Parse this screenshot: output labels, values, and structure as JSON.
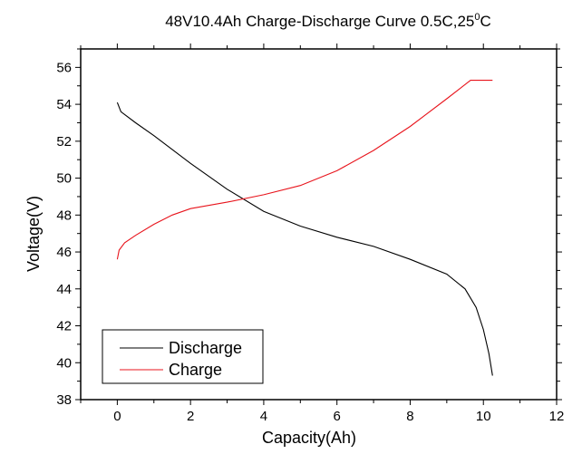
{
  "chart_data": {
    "type": "line",
    "title": "48V10.4Ah Charge-Discharge Curve  0.5C,25",
    "title_superscript": "0",
    "title_suffix": "C",
    "xlabel": "Capacity(Ah)",
    "ylabel": "Voltage(V)",
    "xlim": [
      -1,
      12
    ],
    "ylim": [
      38,
      57
    ],
    "xticks": [
      0,
      2,
      4,
      6,
      8,
      10,
      12
    ],
    "yticks": [
      38,
      40,
      42,
      44,
      46,
      48,
      50,
      52,
      54,
      56
    ],
    "grid": false,
    "legend": "bottom-left",
    "series": [
      {
        "name": "Discharge",
        "color": "#000000",
        "x": [
          0,
          0.1,
          0.5,
          1,
          2,
          3,
          4,
          5,
          6,
          7,
          8,
          9,
          9.5,
          9.8,
          10,
          10.15,
          10.25
        ],
        "y": [
          54.1,
          53.6,
          53.0,
          52.3,
          50.8,
          49.4,
          48.2,
          47.4,
          46.8,
          46.3,
          45.6,
          44.8,
          44.0,
          43.0,
          41.8,
          40.5,
          39.3
        ]
      },
      {
        "name": "Charge",
        "color": "#e8141c",
        "x": [
          0,
          0.05,
          0.2,
          0.5,
          1,
          1.5,
          2,
          3,
          4,
          5,
          6,
          7,
          8,
          9,
          9.65,
          10.25
        ],
        "y": [
          45.6,
          46.1,
          46.5,
          46.9,
          47.5,
          48.0,
          48.35,
          48.7,
          49.1,
          49.6,
          50.4,
          51.5,
          52.8,
          54.3,
          55.3,
          55.3
        ]
      }
    ]
  }
}
